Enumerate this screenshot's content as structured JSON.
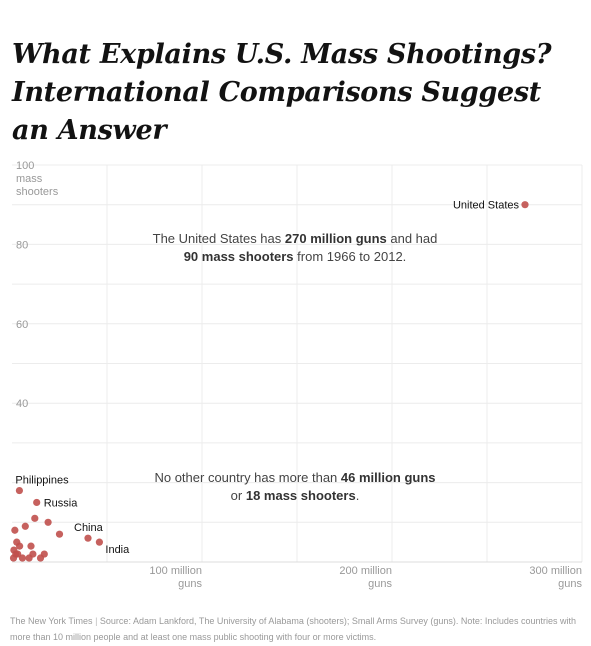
{
  "headline": "What Explains U.S. Mass Shootings? International Comparisons Suggest an Answer",
  "annotations": {
    "us": {
      "line1_pre": "The United States has ",
      "line1_bold": "270 million guns",
      "line1_post": " and had",
      "line2_bold": "90 mass shooters",
      "line2_post": " from 1966 to 2012."
    },
    "others": {
      "line1_pre": "No other country has more than ",
      "line1_bold": "46 million guns",
      "line2_pre": "or ",
      "line2_bold": "18 mass shooters",
      "line2_post": "."
    }
  },
  "footer": {
    "credit": "The New York Times",
    "separator": "|",
    "source": "Source: Adam Lankford, The University of Alabama (shooters); Small Arms Survey (guns). Note: Includes countries with more than 10 million people and at least one mass public shooting with four or more victims."
  },
  "chart_data": {
    "type": "scatter",
    "xlim": [
      0,
      300
    ],
    "ylim": [
      0,
      100
    ],
    "x_unit": "million guns",
    "y_unit": "mass shooters",
    "grid": true,
    "point_color": "#c0504d",
    "y_ticks": [
      {
        "value": 100,
        "lines": [
          "100",
          "mass",
          "shooters"
        ]
      },
      {
        "value": 80,
        "lines": [
          "80"
        ]
      },
      {
        "value": 60,
        "lines": [
          "60"
        ]
      },
      {
        "value": 40,
        "lines": [
          "40"
        ]
      }
    ],
    "x_ticks": [
      {
        "value": 100,
        "lines": [
          "100 million",
          "guns"
        ]
      },
      {
        "value": 200,
        "lines": [
          "200 million",
          "guns"
        ]
      },
      {
        "value": 300,
        "lines": [
          "300 million",
          "guns"
        ]
      }
    ],
    "points": [
      {
        "label": "United States",
        "x": 270,
        "y": 90
      },
      {
        "label": "Philippines",
        "x": 3.9,
        "y": 18
      },
      {
        "label": "Russia",
        "x": 13,
        "y": 15
      },
      {
        "label": "China",
        "x": 40,
        "y": 6
      },
      {
        "label": "India",
        "x": 46,
        "y": 5
      },
      {
        "label": "",
        "x": 12,
        "y": 11
      },
      {
        "label": "",
        "x": 19,
        "y": 10
      },
      {
        "label": "",
        "x": 25,
        "y": 7
      },
      {
        "label": "",
        "x": 1.5,
        "y": 8
      },
      {
        "label": "",
        "x": 7,
        "y": 9
      },
      {
        "label": "",
        "x": 2.5,
        "y": 5
      },
      {
        "label": "",
        "x": 4,
        "y": 4
      },
      {
        "label": "",
        "x": 1,
        "y": 3
      },
      {
        "label": "",
        "x": 3,
        "y": 2
      },
      {
        "label": "",
        "x": 0.8,
        "y": 1
      },
      {
        "label": "",
        "x": 5.5,
        "y": 1
      },
      {
        "label": "",
        "x": 10,
        "y": 4
      },
      {
        "label": "",
        "x": 11,
        "y": 2
      },
      {
        "label": "",
        "x": 17,
        "y": 2
      },
      {
        "label": "",
        "x": 15,
        "y": 1
      },
      {
        "label": "",
        "x": 9,
        "y": 1
      },
      {
        "label": "",
        "x": 2,
        "y": 2
      }
    ]
  }
}
